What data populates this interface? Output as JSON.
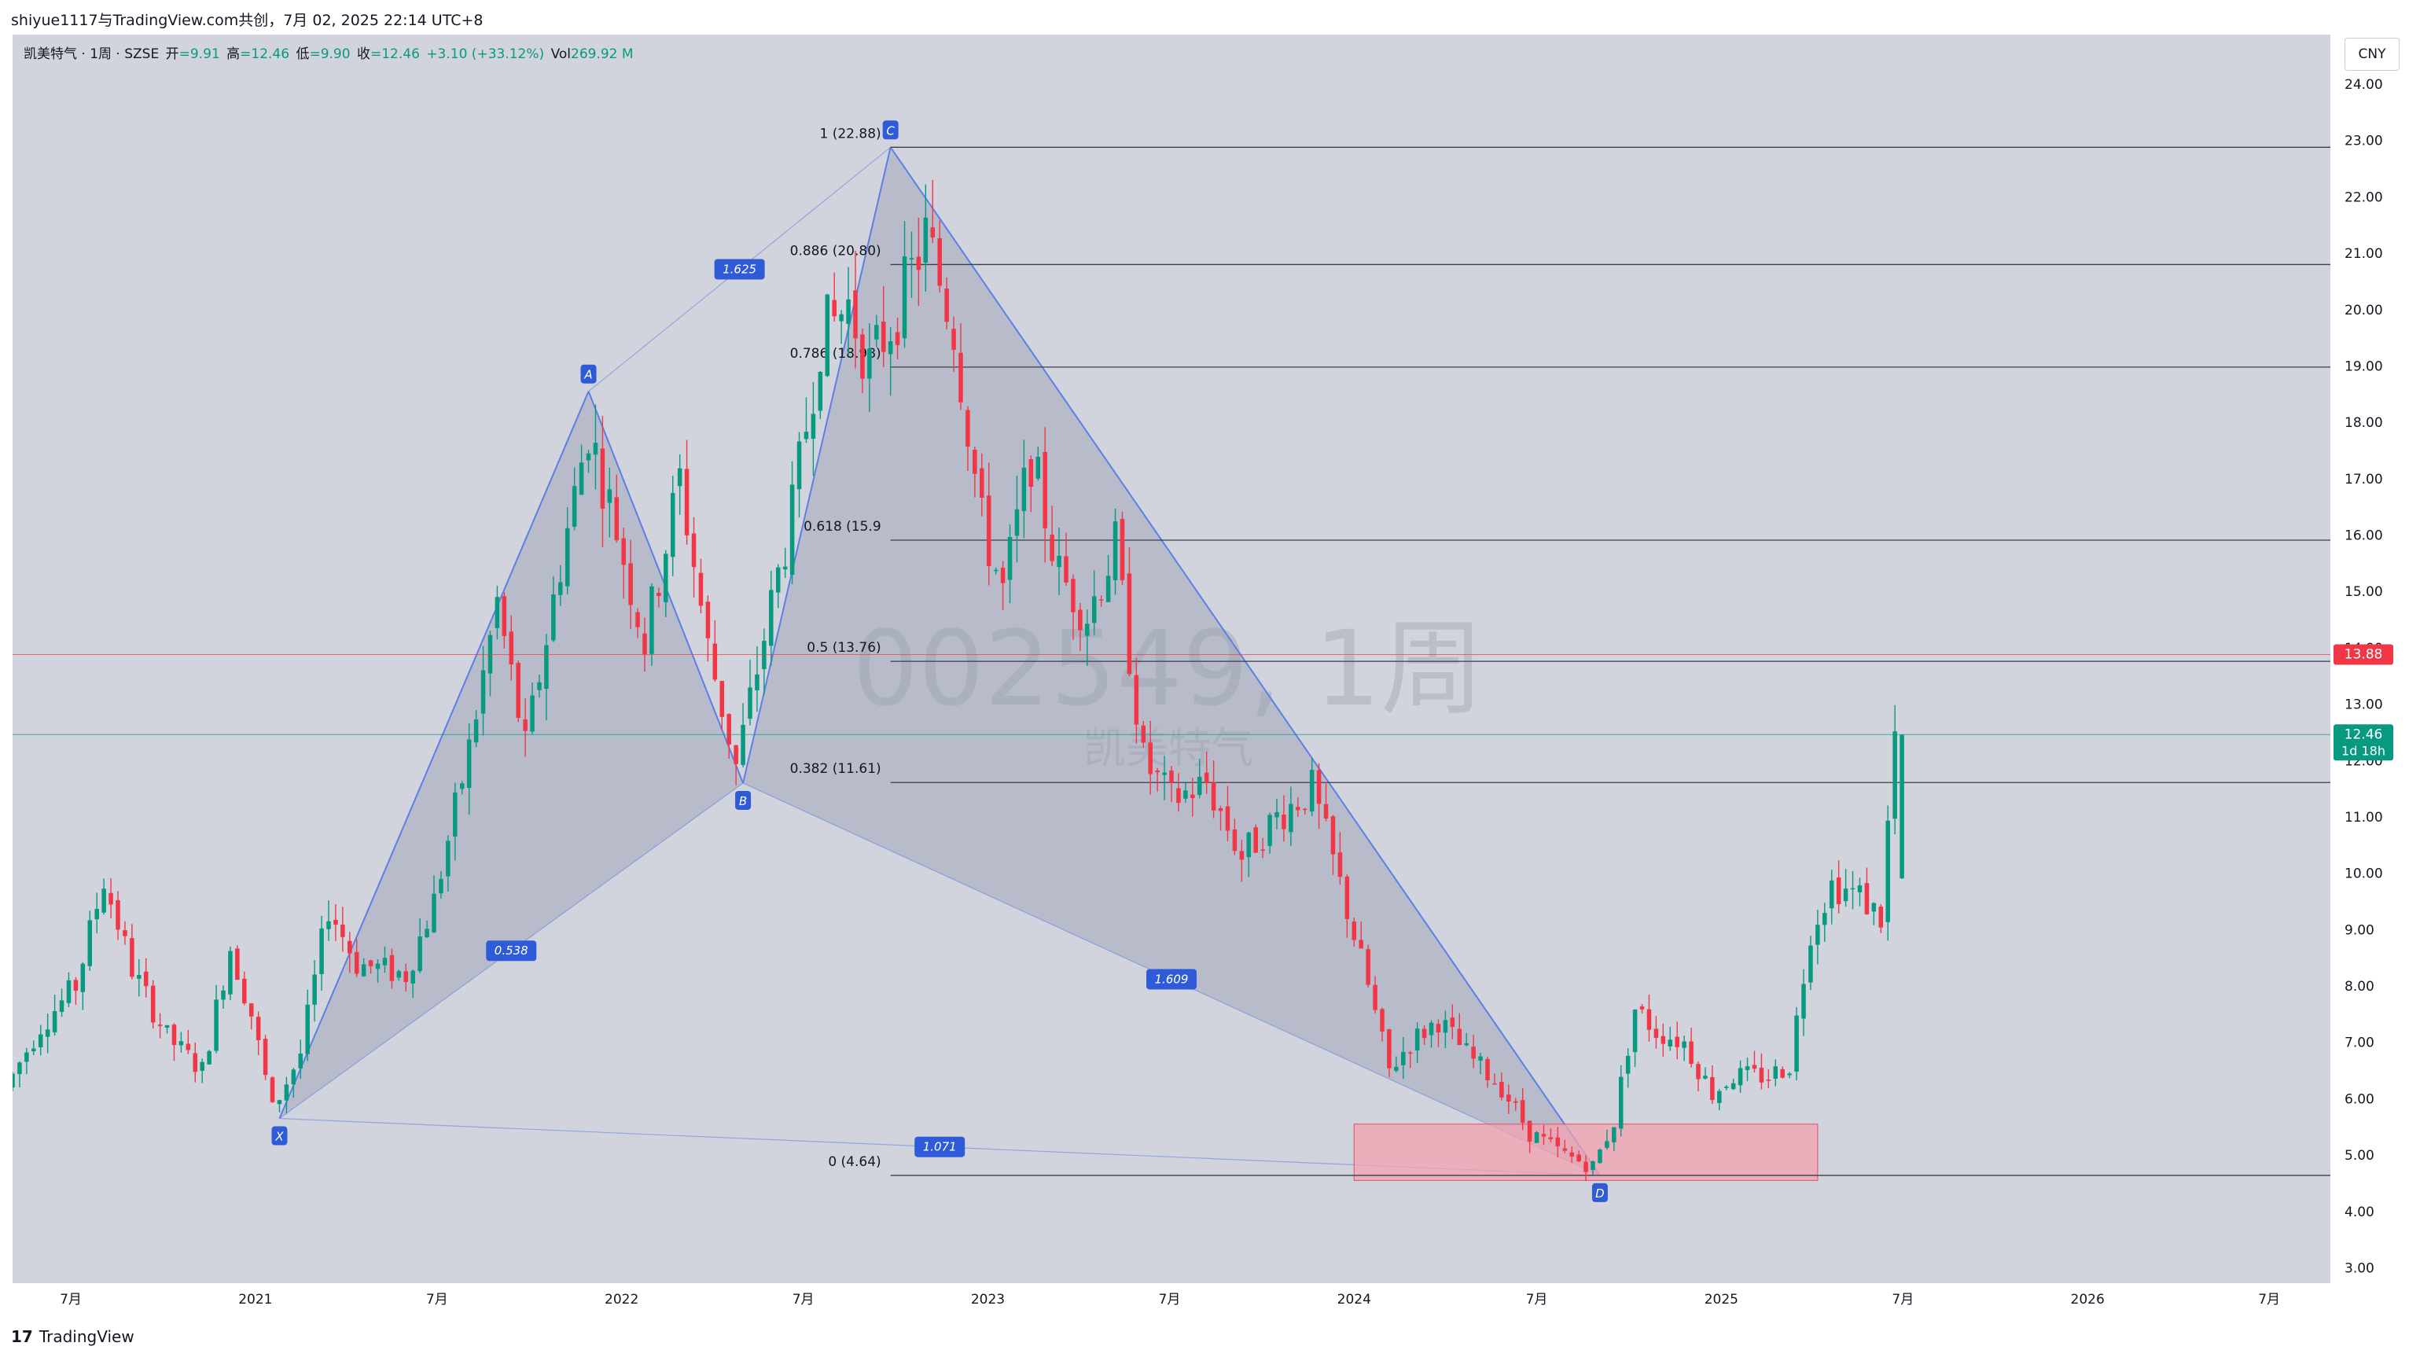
{
  "header": {
    "text": "shiyue1117与TradingView.com共创，7月 02, 2025 22:14 UTC+8"
  },
  "legend": {
    "symbol": "凯美特气 · 1周 · SZSE",
    "open_label": "开",
    "open": "=9.91",
    "high_label": "高",
    "high": "=12.46",
    "low_label": "低",
    "low": "=9.90",
    "close_label": "收",
    "close": "=12.46",
    "change": "+3.10 (+33.12%)",
    "vol_label": "Vol",
    "vol": "269.92 M"
  },
  "currency_button": "CNY",
  "watermark": {
    "ticker": "002549, 1周",
    "name": "凯美特气"
  },
  "footer": {
    "logo": "17",
    "brand": "TradingView"
  },
  "colors": {
    "background": "#d1d4dc",
    "up": "#089981",
    "down": "#f23645",
    "pattern_line": "#5b7fe6",
    "pattern_fill": "#9aa0b4",
    "prz_box": "#f3a1b0",
    "fib_line": "#3a3e4a",
    "marker_red": "#f23645",
    "marker_green": "#089981"
  },
  "chart_data": {
    "type": "candlestick",
    "timeframe": "1周",
    "ylim": [
      2.7,
      24.6
    ],
    "xlim": [
      "2020-05-04",
      "2026-08-31"
    ],
    "y_ticks": [
      "24.00",
      "23.00",
      "22.00",
      "21.00",
      "20.00",
      "19.00",
      "18.00",
      "17.00",
      "16.00",
      "15.00",
      "14.00",
      "13.00",
      "12.00",
      "11.00",
      "10.00",
      "9.00",
      "8.00",
      "7.00",
      "6.00",
      "5.00",
      "4.00",
      "3.00"
    ],
    "x_ticks": [
      {
        "label": "7月",
        "date": "2020-07-01"
      },
      {
        "label": "2021",
        "date": "2021-01-01"
      },
      {
        "label": "7月",
        "date": "2021-07-01"
      },
      {
        "label": "2022",
        "date": "2022-01-01"
      },
      {
        "label": "7月",
        "date": "2022-07-01"
      },
      {
        "label": "2023",
        "date": "2023-01-01"
      },
      {
        "label": "7月",
        "date": "2023-07-01"
      },
      {
        "label": "2024",
        "date": "2024-01-01"
      },
      {
        "label": "7月",
        "date": "2024-07-01"
      },
      {
        "label": "2025",
        "date": "2025-01-01"
      },
      {
        "label": "7月",
        "date": "2025-07-01"
      },
      {
        "label": "2026",
        "date": "2026-01-01"
      },
      {
        "label": "7月",
        "date": "2026-07-01"
      }
    ],
    "price_path": [
      [
        "2020-05-04",
        6.2
      ],
      [
        "2020-06-08",
        7.3
      ],
      [
        "2020-07-13",
        8.0
      ],
      [
        "2020-08-10",
        9.9
      ],
      [
        "2020-09-07",
        8.3
      ],
      [
        "2020-10-12",
        7.1
      ],
      [
        "2020-11-16",
        6.5
      ],
      [
        "2020-12-14",
        8.7
      ],
      [
        "2021-01-04",
        7.5
      ],
      [
        "2021-01-25",
        5.8
      ],
      [
        "2021-02-22",
        6.8
      ],
      [
        "2021-03-22",
        9.4
      ],
      [
        "2021-04-19",
        8.4
      ],
      [
        "2021-06-07",
        8.2
      ],
      [
        "2021-07-05",
        9.5
      ],
      [
        "2021-08-09",
        12.2
      ],
      [
        "2021-09-06",
        14.8
      ],
      [
        "2021-10-04",
        12.2
      ],
      [
        "2021-11-08",
        15.5
      ],
      [
        "2021-12-06",
        17.9
      ],
      [
        "2022-01-03",
        16.1
      ],
      [
        "2022-01-31",
        14.1
      ],
      [
        "2022-03-07",
        17.0
      ],
      [
        "2022-04-04",
        14.0
      ],
      [
        "2022-05-02",
        11.9
      ],
      [
        "2022-05-30",
        14.2
      ],
      [
        "2022-06-27",
        16.4
      ],
      [
        "2022-07-25",
        19.5
      ],
      [
        "2022-08-22",
        20.1
      ],
      [
        "2022-09-12",
        19.0
      ],
      [
        "2022-10-10",
        20.0
      ],
      [
        "2022-11-07",
        21.3
      ],
      [
        "2022-12-05",
        19.7
      ],
      [
        "2023-01-02",
        16.2
      ],
      [
        "2023-01-23",
        15.0
      ],
      [
        "2023-02-20",
        17.4
      ],
      [
        "2023-03-20",
        15.3
      ],
      [
        "2023-04-17",
        14.6
      ],
      [
        "2023-05-15",
        15.8
      ],
      [
        "2023-06-12",
        12.0
      ],
      [
        "2023-07-10",
        11.3
      ],
      [
        "2023-08-14",
        11.6
      ],
      [
        "2023-09-18",
        10.3
      ],
      [
        "2023-10-23",
        11.0
      ],
      [
        "2023-11-27",
        11.5
      ],
      [
        "2023-12-25",
        9.8
      ],
      [
        "2024-01-22",
        8.0
      ],
      [
        "2024-02-12",
        6.5
      ],
      [
        "2024-03-04",
        7.0
      ],
      [
        "2024-04-01",
        7.4
      ],
      [
        "2024-04-29",
        6.8
      ],
      [
        "2024-06-03",
        6.2
      ],
      [
        "2024-07-01",
        5.4
      ],
      [
        "2024-08-05",
        5.0
      ],
      [
        "2024-09-02",
        4.8
      ],
      [
        "2024-09-23",
        5.6
      ],
      [
        "2024-10-14",
        7.6
      ],
      [
        "2024-11-04",
        7.2
      ],
      [
        "2024-12-02",
        7.0
      ],
      [
        "2024-12-30",
        6.1
      ],
      [
        "2025-01-20",
        6.4
      ],
      [
        "2025-02-24",
        6.4
      ],
      [
        "2025-03-17",
        6.6
      ],
      [
        "2025-04-07",
        9.0
      ],
      [
        "2025-04-28",
        9.8
      ],
      [
        "2025-05-26",
        9.6
      ],
      [
        "2025-06-16",
        9.2
      ],
      [
        "2025-06-30",
        12.46
      ]
    ],
    "last_candle": {
      "date": "2025-06-30",
      "open": 9.91,
      "high": 12.46,
      "low": 9.9,
      "close": 12.46,
      "volume": "269.92 M"
    },
    "price_labels": [
      {
        "text": "13.88",
        "value": 13.88,
        "color": "#f23645"
      },
      {
        "text": "12.46",
        "sub": "1d 18h",
        "value": 12.46,
        "color": "#089981"
      }
    ],
    "horizontal_lines": [
      {
        "value": 13.88,
        "color": "#f23645"
      },
      {
        "value": 12.46,
        "color": "#089981"
      }
    ],
    "xabcd_pattern": {
      "points": [
        {
          "label": "X",
          "date": "2021-01-25",
          "price": 5.65
        },
        {
          "label": "A",
          "date": "2021-11-29",
          "price": 18.55
        },
        {
          "label": "B",
          "date": "2022-05-02",
          "price": 11.6
        },
        {
          "label": "C",
          "date": "2022-09-26",
          "price": 22.88
        },
        {
          "label": "D",
          "date": "2024-09-02",
          "price": 4.64
        }
      ],
      "ratios": [
        {
          "text": "1.625",
          "from": "A",
          "to": "C"
        },
        {
          "text": "0.538",
          "from": "X",
          "to": "B"
        },
        {
          "text": "1.609",
          "from": "B",
          "to": "D"
        },
        {
          "text": "1.071",
          "from": "X",
          "to": "D"
        }
      ]
    },
    "fib_levels": [
      {
        "ratio": "1",
        "text": "1 (22.88)",
        "value": 22.88
      },
      {
        "ratio": "0.886",
        "text": "0.886 (20.80)",
        "value": 20.8
      },
      {
        "ratio": "0.786",
        "text": "0.786 (18.98)",
        "value": 18.98
      },
      {
        "ratio": "0.618",
        "text": "0.618 (15.9",
        "value": 15.91
      },
      {
        "ratio": "0.5",
        "text": "0.5 (13.76)",
        "value": 13.76
      },
      {
        "ratio": "0.382",
        "text": "0.382 (11.61)",
        "value": 11.61
      },
      {
        "ratio": "0",
        "text": "0 (4.64)",
        "value": 4.64
      }
    ],
    "fib_start_date": "2022-09-26",
    "prz_box": {
      "from_date": "2024-01-01",
      "to_date": "2025-04-07",
      "low": 4.55,
      "high": 5.55
    },
    "grid": false
  }
}
